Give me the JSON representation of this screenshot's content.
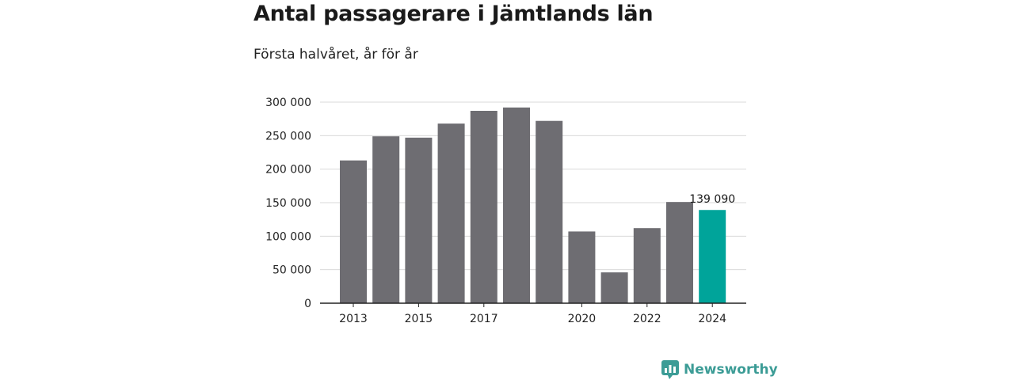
{
  "header": {
    "title": "Antal passagerare i Jämtlands län",
    "subtitle": "Första halvåret, år för år"
  },
  "brand": {
    "name": "Newsworthy",
    "icon": "newsworthy-logo-icon",
    "color": "#3c9c96"
  },
  "chart_data": {
    "type": "bar",
    "title": "Antal passagerare i Jämtlands län",
    "subtitle": "Första halvåret, år för år",
    "categories": [
      "2013",
      "2014",
      "2015",
      "2016",
      "2017",
      "2018",
      "2019",
      "2020",
      "2021",
      "2022",
      "2023",
      "2024"
    ],
    "x_tick_labels": [
      "2013",
      "2015",
      "2017",
      "2020",
      "2022",
      "2024"
    ],
    "values": [
      213000,
      249000,
      247000,
      268000,
      287000,
      292000,
      272000,
      107000,
      46000,
      112000,
      151000,
      139090
    ],
    "ylim": [
      0,
      300000
    ],
    "y_ticks": [
      0,
      50000,
      100000,
      150000,
      200000,
      250000,
      300000
    ],
    "y_tick_labels": [
      "0",
      "50 000",
      "100 000",
      "150 000",
      "200 000",
      "250 000",
      "300 000"
    ],
    "annotations": [
      {
        "category": "2024",
        "text": "139 090"
      }
    ],
    "colors": {
      "default": "#6e6d72",
      "highlight": "#00a49a",
      "grid": "#d9d9d9",
      "axis": "#222222"
    },
    "highlight_category": "2024",
    "grid": true,
    "xlabel": "",
    "ylabel": ""
  }
}
